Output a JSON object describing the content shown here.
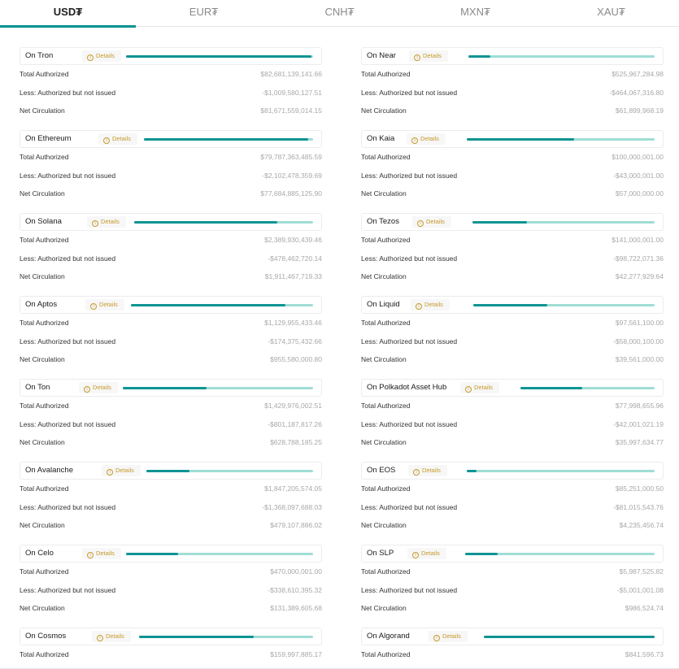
{
  "tabs": [
    {
      "label": "USD₮",
      "active": true
    },
    {
      "label": "EUR₮",
      "active": false
    },
    {
      "label": "CNH₮",
      "active": false
    },
    {
      "label": "MXN₮",
      "active": false
    },
    {
      "label": "XAU₮",
      "active": false
    }
  ],
  "row_labels": {
    "total": "Total Authorized",
    "less": "Less: Authorized but not issued",
    "net": "Net Circulation"
  },
  "details_label": "Details",
  "colors": {
    "accent": "#009393",
    "bar_fill": "#0f9493",
    "bar_track": "#9fddd5",
    "details_text": "#c79a2c"
  },
  "chains_left": [
    {
      "name": "On Tron",
      "issued_fraction": 0.99,
      "total": "$82,681,139,141.66",
      "less": "-$1,009,580,127.51",
      "net": "$81,671,559,014.15"
    },
    {
      "name": "On Ethereum",
      "issued_fraction": 0.97,
      "total": "$79,787,363,485.59",
      "less": "-$2,102,478,359.69",
      "net": "$77,684,885,125.90"
    },
    {
      "name": "On Solana",
      "issued_fraction": 0.8,
      "total": "$2,389,930,439.46",
      "less": "-$478,462,720.14",
      "net": "$1,911,467,719.33"
    },
    {
      "name": "On Aptos",
      "issued_fraction": 0.85,
      "total": "$1,129,955,433.46",
      "less": "-$174,375,432.66",
      "net": "$955,580,000.80"
    },
    {
      "name": "On Ton",
      "issued_fraction": 0.44,
      "total": "$1,429,976,002.51",
      "less": "-$801,187,817.26",
      "net": "$628,788,185.25"
    },
    {
      "name": "On Avalanche",
      "issued_fraction": 0.26,
      "total": "$1,847,205,574.05",
      "less": "-$1,368,097,688.03",
      "net": "$479,107,886.02"
    },
    {
      "name": "On Celo",
      "issued_fraction": 0.28,
      "total": "$470,000,001.00",
      "less": "-$338,610,395.32",
      "net": "$131,389,605.68"
    },
    {
      "name": "On Cosmos",
      "issued_fraction": 0.66,
      "total": "$159,997,885.17"
    }
  ],
  "chains_right": [
    {
      "name": "On Near",
      "issued_fraction": 0.12,
      "total": "$525,967,284.98",
      "less": "-$464,067,316.80",
      "net": "$61,899,968.19"
    },
    {
      "name": "On Kaia",
      "issued_fraction": 0.57,
      "total": "$100,000,001.00",
      "less": "-$43,000,001.00",
      "net": "$57,000,000.00"
    },
    {
      "name": "On Tezos",
      "issued_fraction": 0.3,
      "total": "$141,000,001.00",
      "less": "-$98,722,071.36",
      "net": "$42,277,929.64"
    },
    {
      "name": "On Liquid",
      "issued_fraction": 0.41,
      "total": "$97,561,100.00",
      "less": "-$58,000,100.00",
      "net": "$39,561,000.00"
    },
    {
      "name": "On Polkadot Asset Hub",
      "issued_fraction": 0.46,
      "total": "$77,998,655.96",
      "less": "-$42,001,021.19",
      "net": "$35,997,634.77"
    },
    {
      "name": "On EOS",
      "issued_fraction": 0.05,
      "total": "$85,251,000.50",
      "less": "-$81,015,543.76",
      "net": "$4,235,456.74"
    },
    {
      "name": "On SLP",
      "issued_fraction": 0.17,
      "total": "$5,987,525.82",
      "less": "-$5,001,001.08",
      "net": "$986,524.74"
    },
    {
      "name": "On Algorand",
      "issued_fraction": 1.0,
      "total": "$841,596.73"
    }
  ]
}
